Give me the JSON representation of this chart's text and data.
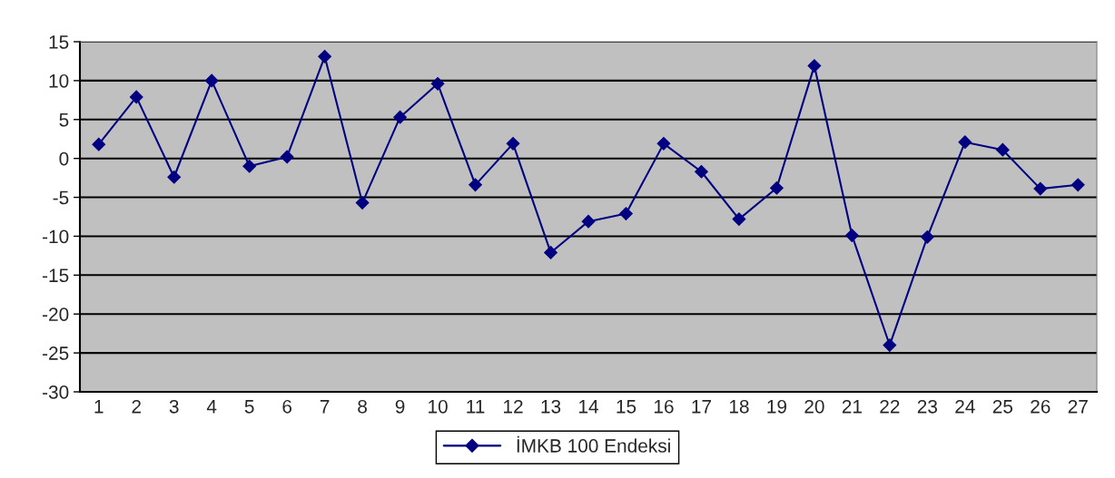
{
  "chart_data": {
    "type": "line",
    "categories": [
      "1",
      "2",
      "3",
      "4",
      "5",
      "6",
      "7",
      "8",
      "9",
      "10",
      "11",
      "12",
      "13",
      "14",
      "15",
      "16",
      "17",
      "18",
      "19",
      "20",
      "21",
      "22",
      "23",
      "24",
      "25",
      "26",
      "27"
    ],
    "series": [
      {
        "name": "İMKB 100 Endeksi",
        "color": "#000080",
        "values": [
          1.8,
          7.9,
          -2.4,
          10,
          -1,
          0.2,
          13.1,
          -5.7,
          5.3,
          9.6,
          -3.4,
          1.9,
          -12.1,
          -8.1,
          -7.1,
          1.9,
          -1.7,
          -7.8,
          -3.8,
          11.9,
          -9.9,
          -24,
          -10.1,
          2.1,
          1.1,
          -3.9,
          -3.4
        ]
      }
    ],
    "ylim": [
      -30,
      15
    ],
    "yticks": [
      -30,
      -25,
      -20,
      -15,
      -10,
      -5,
      0,
      5,
      10,
      15
    ],
    "grid": "y",
    "legend": "bottom",
    "marker": "diamond",
    "line_style": "solid"
  }
}
